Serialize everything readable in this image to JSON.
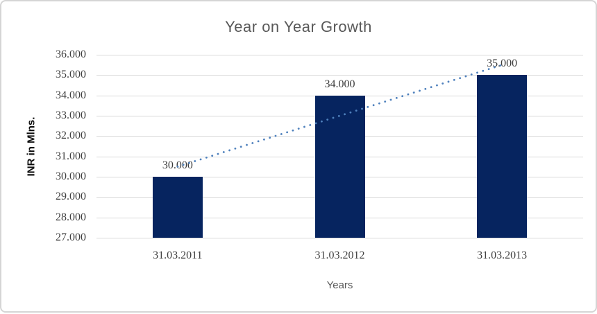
{
  "chart_data": {
    "type": "bar",
    "title": "Year on Year Growth",
    "xlabel": "Years",
    "ylabel": "INR in Mlns.",
    "categories": [
      "31.03.2011",
      "31.03.2012",
      "31.03.2013"
    ],
    "values": [
      30000,
      34000,
      35000
    ],
    "data_labels": [
      "30.000",
      "34.000",
      "35.000"
    ],
    "ylim": [
      27000,
      36000
    ],
    "ytick_step": 1000,
    "ytick_labels": [
      "27.000",
      "28.000",
      "29.000",
      "30.000",
      "31.000",
      "32.000",
      "33.000",
      "34.000",
      "35.000",
      "36.000"
    ],
    "grid": true,
    "legend": false,
    "bar_color": "#06245f",
    "trendline": {
      "type": "linear",
      "style": "dotted",
      "color": "#4f81bd"
    },
    "gridline_color": "#d9d9d9",
    "title_color": "#595959",
    "tick_color": "#404040"
  }
}
